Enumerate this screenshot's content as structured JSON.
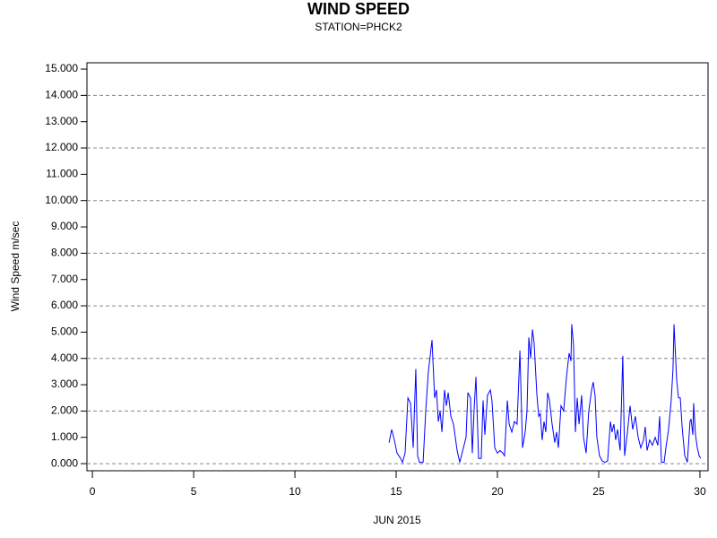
{
  "chart_data": {
    "type": "line",
    "title": "WIND SPEED",
    "subtitle": "STATION=PHCK2",
    "x_label": "JUN 2015",
    "y_label": "Wind Speed m/sec",
    "xlim": [
      -0.27,
      30.4
    ],
    "ylim": [
      -0.27,
      15.24
    ],
    "xticks": [
      0,
      5,
      10,
      15,
      20,
      25,
      30
    ],
    "yticks": [
      {
        "value": 0,
        "label": "0.000"
      },
      {
        "value": 1,
        "label": "1.000"
      },
      {
        "value": 2,
        "label": "2.000"
      },
      {
        "value": 3,
        "label": "3.000"
      },
      {
        "value": 4,
        "label": "4.000"
      },
      {
        "value": 5,
        "label": "5.000"
      },
      {
        "value": 6,
        "label": "6.000"
      },
      {
        "value": 7,
        "label": "7.000"
      },
      {
        "value": 8,
        "label": "8.000"
      },
      {
        "value": 9,
        "label": "9.000"
      },
      {
        "value": 10,
        "label": "10.000"
      },
      {
        "value": 11,
        "label": "11.000"
      },
      {
        "value": 12,
        "label": "12.000"
      },
      {
        "value": 13,
        "label": "13.000"
      },
      {
        "value": 14,
        "label": "14.000"
      },
      {
        "value": 15,
        "label": "15.000"
      }
    ],
    "grid": "dashed",
    "series": [
      {
        "color": "#0000ff",
        "x": [
          14.65,
          14.78,
          14.91,
          15.04,
          15.22,
          15.31,
          15.44,
          15.58,
          15.71,
          15.84,
          15.97,
          16.06,
          16.15,
          16.33,
          16.46,
          16.59,
          16.77,
          16.9,
          16.99,
          17.08,
          17.17,
          17.26,
          17.39,
          17.48,
          17.57,
          17.7,
          17.83,
          18.01,
          18.14,
          18.32,
          18.45,
          18.54,
          18.67,
          18.76,
          18.85,
          18.94,
          19.07,
          19.2,
          19.29,
          19.38,
          19.51,
          19.65,
          19.73,
          19.87,
          20.0,
          20.13,
          20.27,
          20.35,
          20.49,
          20.58,
          20.71,
          20.84,
          20.97,
          21.11,
          21.24,
          21.37,
          21.46,
          21.55,
          21.64,
          21.73,
          21.81,
          21.95,
          22.04,
          22.12,
          22.21,
          22.3,
          22.39,
          22.48,
          22.57,
          22.7,
          22.83,
          22.92,
          23.01,
          23.14,
          23.27,
          23.41,
          23.54,
          23.63,
          23.67,
          23.76,
          23.85,
          23.94,
          24.03,
          24.16,
          24.25,
          24.38,
          24.51,
          24.65,
          24.73,
          24.82,
          24.91,
          25.04,
          25.18,
          25.31,
          25.44,
          25.58,
          25.66,
          25.75,
          25.84,
          25.93,
          26.06,
          26.19,
          26.28,
          26.42,
          26.55,
          26.68,
          26.81,
          26.95,
          27.08,
          27.21,
          27.3,
          27.39,
          27.52,
          27.65,
          27.79,
          27.92,
          28.01,
          28.1,
          28.23,
          28.32,
          28.45,
          28.58,
          28.67,
          28.72,
          28.85,
          28.94,
          29.03,
          29.12,
          29.25,
          29.38,
          29.51,
          29.56,
          29.65,
          29.69,
          29.78,
          29.87,
          29.96,
          30.04
        ],
        "values": [
          0.8,
          1.3,
          0.9,
          0.4,
          0.2,
          0.05,
          0.4,
          2.5,
          2.3,
          0.6,
          3.6,
          0.3,
          0.05,
          0.05,
          2.0,
          3.5,
          4.7,
          2.5,
          2.8,
          1.6,
          2.0,
          1.2,
          2.8,
          2.2,
          2.7,
          1.8,
          1.5,
          0.5,
          0.05,
          0.6,
          1.0,
          2.7,
          2.5,
          0.4,
          2.1,
          3.3,
          0.2,
          0.2,
          2.4,
          1.1,
          2.6,
          2.8,
          2.4,
          0.6,
          0.4,
          0.5,
          0.4,
          0.3,
          2.4,
          1.5,
          1.2,
          1.6,
          1.5,
          4.3,
          0.6,
          1.2,
          2.0,
          4.8,
          4.0,
          5.1,
          4.6,
          2.6,
          1.8,
          1.9,
          0.9,
          1.6,
          1.2,
          2.7,
          2.4,
          1.5,
          0.8,
          1.2,
          0.6,
          2.2,
          2.0,
          3.3,
          4.2,
          3.9,
          5.3,
          4.5,
          1.2,
          2.5,
          1.5,
          2.6,
          1.0,
          0.4,
          2.0,
          2.8,
          3.1,
          2.6,
          1.0,
          0.3,
          0.1,
          0.05,
          0.1,
          1.6,
          1.2,
          1.5,
          0.9,
          1.3,
          0.5,
          4.1,
          0.3,
          1.2,
          2.2,
          1.3,
          1.8,
          1.0,
          0.6,
          0.9,
          1.4,
          0.5,
          0.9,
          0.7,
          1.0,
          0.7,
          1.8,
          0.05,
          0.05,
          0.6,
          1.3,
          2.4,
          3.6,
          5.3,
          3.2,
          2.5,
          2.5,
          1.4,
          0.3,
          0.05,
          1.6,
          1.7,
          1.1,
          2.3,
          1.1,
          0.6,
          0.3,
          0.2
        ]
      }
    ]
  }
}
